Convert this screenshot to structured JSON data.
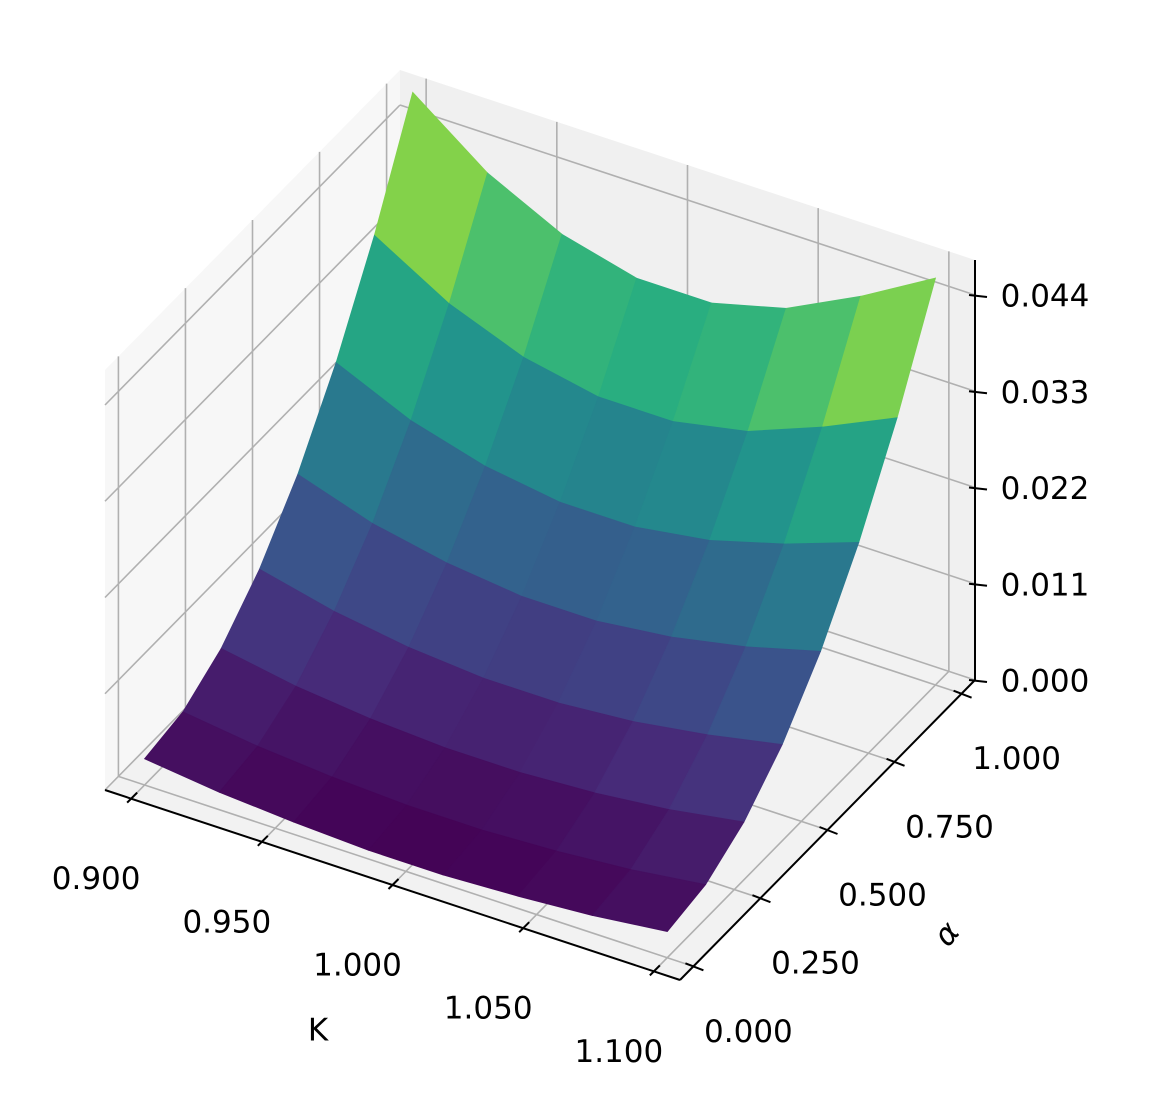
{
  "chart_data": {
    "type": "surface",
    "colormap": "viridis",
    "x_label": "K",
    "y_label": "α",
    "x": [
      0.9,
      0.9286,
      0.9571,
      0.9857,
      1.0143,
      1.0429,
      1.0714,
      1.1
    ],
    "y": [
      0.0,
      0.1429,
      0.2857,
      0.4286,
      0.5714,
      0.7143,
      0.8571,
      1.0
    ],
    "z": [
      [
        0.003,
        0.002,
        0.0014,
        0.001,
        0.001,
        0.0014,
        0.002,
        0.003
      ],
      [
        0.0039,
        0.0028,
        0.0021,
        0.0017,
        0.0017,
        0.0021,
        0.0028,
        0.0039
      ],
      [
        0.0067,
        0.0052,
        0.0043,
        0.0038,
        0.0038,
        0.0043,
        0.0052,
        0.0066
      ],
      [
        0.0113,
        0.0093,
        0.008,
        0.0073,
        0.0073,
        0.008,
        0.0093,
        0.011
      ],
      [
        0.0177,
        0.0149,
        0.0132,
        0.0122,
        0.0122,
        0.0132,
        0.0149,
        0.0172
      ],
      [
        0.026,
        0.0222,
        0.0198,
        0.0185,
        0.0185,
        0.0198,
        0.0222,
        0.0252
      ],
      [
        0.0361,
        0.0311,
        0.0278,
        0.0261,
        0.0261,
        0.0278,
        0.0311,
        0.035
      ],
      [
        0.048,
        0.0416,
        0.0374,
        0.0352,
        0.0352,
        0.0374,
        0.0416,
        0.0465
      ]
    ],
    "xlim": [
      0.89,
      1.11
    ],
    "ylim": [
      -0.05,
      1.05
    ],
    "zlim": [
      0.0,
      0.048
    ],
    "xticks": [
      {
        "value": 0.9,
        "label": "0.900"
      },
      {
        "value": 0.95,
        "label": "0.950"
      },
      {
        "value": 1.0,
        "label": "1.000"
      },
      {
        "value": 1.05,
        "label": "1.050"
      },
      {
        "value": 1.1,
        "label": "1.100"
      }
    ],
    "yticks": [
      {
        "value": 0.0,
        "label": "0.000"
      },
      {
        "value": 0.25,
        "label": "0.250"
      },
      {
        "value": 0.5,
        "label": "0.500"
      },
      {
        "value": 0.75,
        "label": "0.750"
      },
      {
        "value": 1.0,
        "label": "1.000"
      }
    ],
    "zticks": [
      {
        "value": 0.0,
        "label": "0.000"
      },
      {
        "value": 0.011,
        "label": "0.011"
      },
      {
        "value": 0.022,
        "label": "0.022"
      },
      {
        "value": 0.033,
        "label": "0.033"
      },
      {
        "value": 0.044,
        "label": "0.044"
      }
    ],
    "grid": true
  }
}
